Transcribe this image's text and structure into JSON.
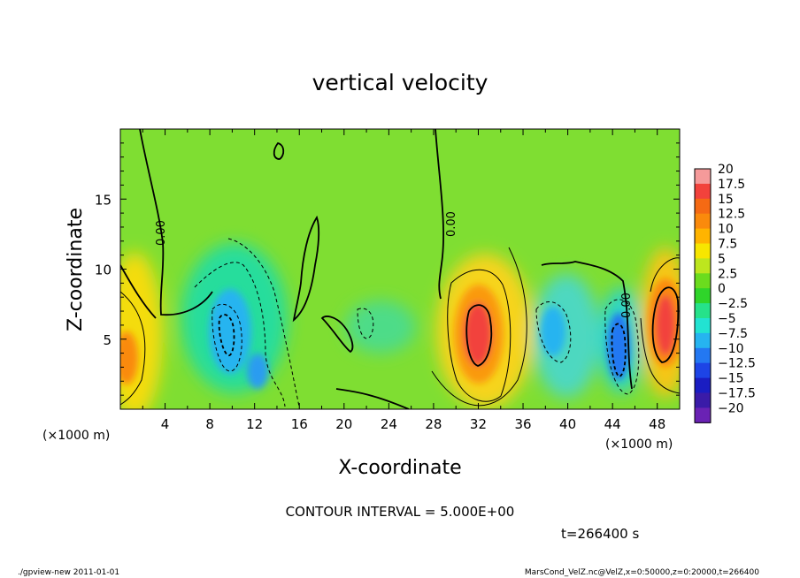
{
  "chart_data": {
    "type": "heatmap",
    "title": "vertical velocity",
    "xlabel": "X-coordinate",
    "ylabel": "Z-coordinate",
    "x_unit_label": "(×1000 m)",
    "xlim": [
      0,
      50
    ],
    "ylim": [
      0,
      20
    ],
    "x_ticks": [
      4,
      8,
      12,
      16,
      20,
      24,
      28,
      32,
      36,
      40,
      44,
      48
    ],
    "y_ticks": [
      5,
      10,
      15
    ],
    "x_tick_labels": [
      "4",
      "8",
      "12",
      "16",
      "20",
      "24",
      "28",
      "32",
      "36",
      "40",
      "44",
      "48"
    ],
    "y_tick_labels": [
      "5",
      "10",
      "15"
    ],
    "colorbar": {
      "levels": [
        "20",
        "17.5",
        "15",
        "12.5",
        "10",
        "7.5",
        "5",
        "2.5",
        "0",
        "−2.5",
        "−5",
        "−7.5",
        "−10",
        "−12.5",
        "−15",
        "−17.5",
        "−20"
      ],
      "colors": [
        "#f59a9a",
        "#f2423c",
        "#f56a14",
        "#fa8a0c",
        "#ffb400",
        "#f7e600",
        "#bde61e",
        "#6bdc1e",
        "#2fd52a",
        "#26e28a",
        "#22e3d2",
        "#26b4f0",
        "#2378f2",
        "#1d44e6",
        "#1a1dc2",
        "#3a1ba8",
        "#6a22b4"
      ]
    },
    "contour_interval_text": "CONTOUR INTERVAL = 5.000E+00",
    "contour_labels": [
      "0.00",
      "0.00",
      "0.00"
    ],
    "time_text": "t=266400 s",
    "features": [
      {
        "kind": "updraft",
        "x": 0.3,
        "z": 4.5,
        "peak": 7
      },
      {
        "kind": "downdraft",
        "x": 9.8,
        "z": 5.2,
        "peak": -8
      },
      {
        "kind": "downdraft",
        "x": 12.2,
        "z": 2.5,
        "peak": -6
      },
      {
        "kind": "updraft",
        "x": 31.6,
        "z": 5.2,
        "peak": 14
      },
      {
        "kind": "downdraft",
        "x": 38.2,
        "z": 5.5,
        "peak": -6
      },
      {
        "kind": "downdraft",
        "x": 44.3,
        "z": 4.0,
        "peak": -9
      },
      {
        "kind": "updraft",
        "x": 48.7,
        "z": 6.0,
        "peak": 15
      }
    ]
  },
  "footer": {
    "left": "./gpview-new   2011-01-01",
    "right": "MarsCond_VelZ.nc@VelZ,x=0:50000,z=0:20000,t=266400"
  }
}
